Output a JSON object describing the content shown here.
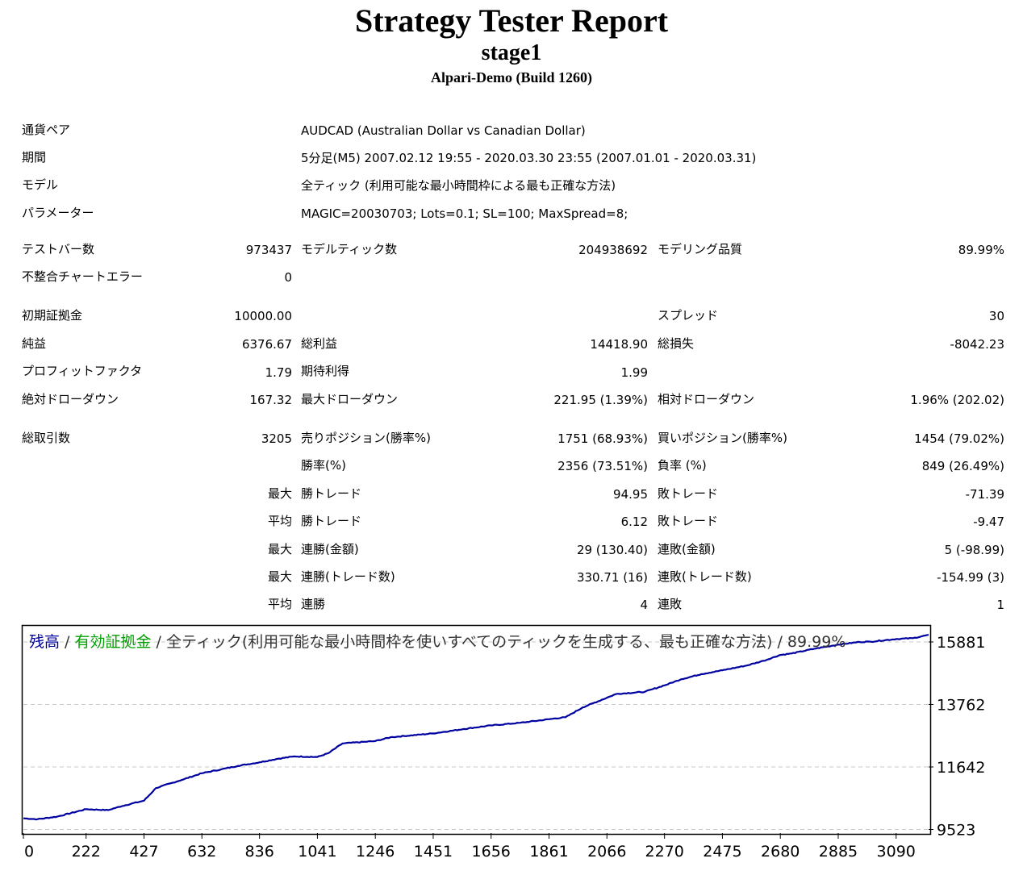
{
  "report": {
    "title": "Strategy Tester Report",
    "subtitle": "stage1",
    "server": "Alpari-Demo (Build 1260)"
  },
  "info": {
    "symbol_label": "通貨ペア",
    "symbol_value": "AUDCAD (Australian Dollar vs Canadian Dollar)",
    "period_label": "期間",
    "period_value": "5分足(M5) 2007.02.12 19:55 - 2020.03.30 23:55 (2007.01.01 - 2020.03.31)",
    "model_label": "モデル",
    "model_value": "全ティック (利用可能な最小時間枠による最も正確な方法)",
    "params_label": "パラメーター",
    "params_value": "MAGIC=20030703; Lots=0.1; SL=100; MaxSpread=8;"
  },
  "stats": {
    "bars_label": "テストバー数",
    "bars_value": "973437",
    "ticks_label": "モデルティック数",
    "ticks_value": "204938692",
    "quality_label": "モデリング品質",
    "quality_value": "89.99%",
    "errors_label": "不整合チャートエラー",
    "errors_value": "0",
    "deposit_label": "初期証拠金",
    "deposit_value": "10000.00",
    "spread_label": "スプレッド",
    "spread_value": "30",
    "net_label": "純益",
    "net_value": "6376.67",
    "gross_profit_label": "総利益",
    "gross_profit_value": "14418.90",
    "gross_loss_label": "総損失",
    "gross_loss_value": "-8042.23",
    "pf_label": "プロフィットファクタ",
    "pf_value": "1.79",
    "payoff_label": "期待利得",
    "payoff_value": "1.99",
    "abs_dd_label": "絶対ドローダウン",
    "abs_dd_value": "167.32",
    "max_dd_label": "最大ドローダウン",
    "max_dd_value": "221.95 (1.39%)",
    "rel_dd_label": "相対ドローダウン",
    "rel_dd_value": "1.96% (202.02)",
    "trades_label": "総取引数",
    "trades_value": "3205",
    "short_label": "売りポジション(勝率%)",
    "short_value": "1751 (68.93%)",
    "long_label": "買いポジション(勝率%)",
    "long_value": "1454 (79.02%)",
    "win_label": "勝率(%)",
    "win_value": "2356 (73.51%)",
    "loss_label": "負率 (%)",
    "loss_value": "849 (26.49%)",
    "max_prefix": "最大",
    "avg_prefix": "平均",
    "largest_win_label": "勝トレード",
    "largest_win_value": "94.95",
    "largest_loss_label": "敗トレード",
    "largest_loss_value": "-71.39",
    "avg_win_label": "勝トレード",
    "avg_win_value": "6.12",
    "avg_loss_label": "敗トレード",
    "avg_loss_value": "-9.47",
    "cons_win_money_label": "連勝(金額)",
    "cons_win_money_value": "29 (130.40)",
    "cons_loss_money_label": "連敗(金額)",
    "cons_loss_money_value": "5 (-98.99)",
    "cons_win_count_label": "連勝(トレード数)",
    "cons_win_count_value": "330.71 (16)",
    "cons_loss_count_label": "連敗(トレード数)",
    "cons_loss_count_value": "-154.99 (3)",
    "avg_cons_win_label": "連勝",
    "avg_cons_win_value": "4",
    "avg_cons_loss_label": "連敗",
    "avg_cons_loss_value": "1"
  },
  "chart_data": {
    "type": "line",
    "title_parts": {
      "balance": "残高",
      "sep1": " / ",
      "equity": "有効証拠金",
      "sep2": " / 全ティック(利用可能な最小時間枠を使いすべてのティックを生成する、最も正確な方法) / 89.99%"
    },
    "colors": {
      "balance": "#0000a0",
      "equity": "#00a000",
      "text": "#333333"
    },
    "x_ticks": [
      0,
      222,
      427,
      632,
      836,
      1041,
      1246,
      1451,
      1656,
      1861,
      2066,
      2270,
      2475,
      2680,
      2885,
      3090
    ],
    "y_ticks": [
      9523,
      11642,
      13762,
      15881
    ],
    "xlim": [
      0,
      3205
    ],
    "ylim": [
      9400,
      16400
    ],
    "series": [
      {
        "x": [
          0,
          50,
          120,
          222,
          300,
          350,
          427,
          470,
          560,
          632,
          700,
          760,
          836,
          900,
          960,
          1041,
          1080,
          1130,
          1246,
          1300,
          1451,
          1560,
          1656,
          1760,
          1861,
          1920,
          1980,
          2066,
          2100,
          2200,
          2270,
          2330,
          2400,
          2475,
          2560,
          2620,
          2680,
          2720,
          2800,
          2885,
          2960,
          3000,
          3090,
          3150,
          3205
        ],
        "values": [
          9900,
          9870,
          9960,
          10210,
          10180,
          10320,
          10500,
          10930,
          11200,
          11430,
          11560,
          11680,
          11800,
          11920,
          12000,
          11980,
          12110,
          12440,
          12520,
          12650,
          12780,
          12930,
          13050,
          13140,
          13260,
          13330,
          13660,
          13990,
          14120,
          14190,
          14410,
          14620,
          14790,
          14920,
          15080,
          15240,
          15440,
          15490,
          15650,
          15790,
          15880,
          15890,
          15980,
          16010,
          16120
        ]
      }
    ]
  }
}
